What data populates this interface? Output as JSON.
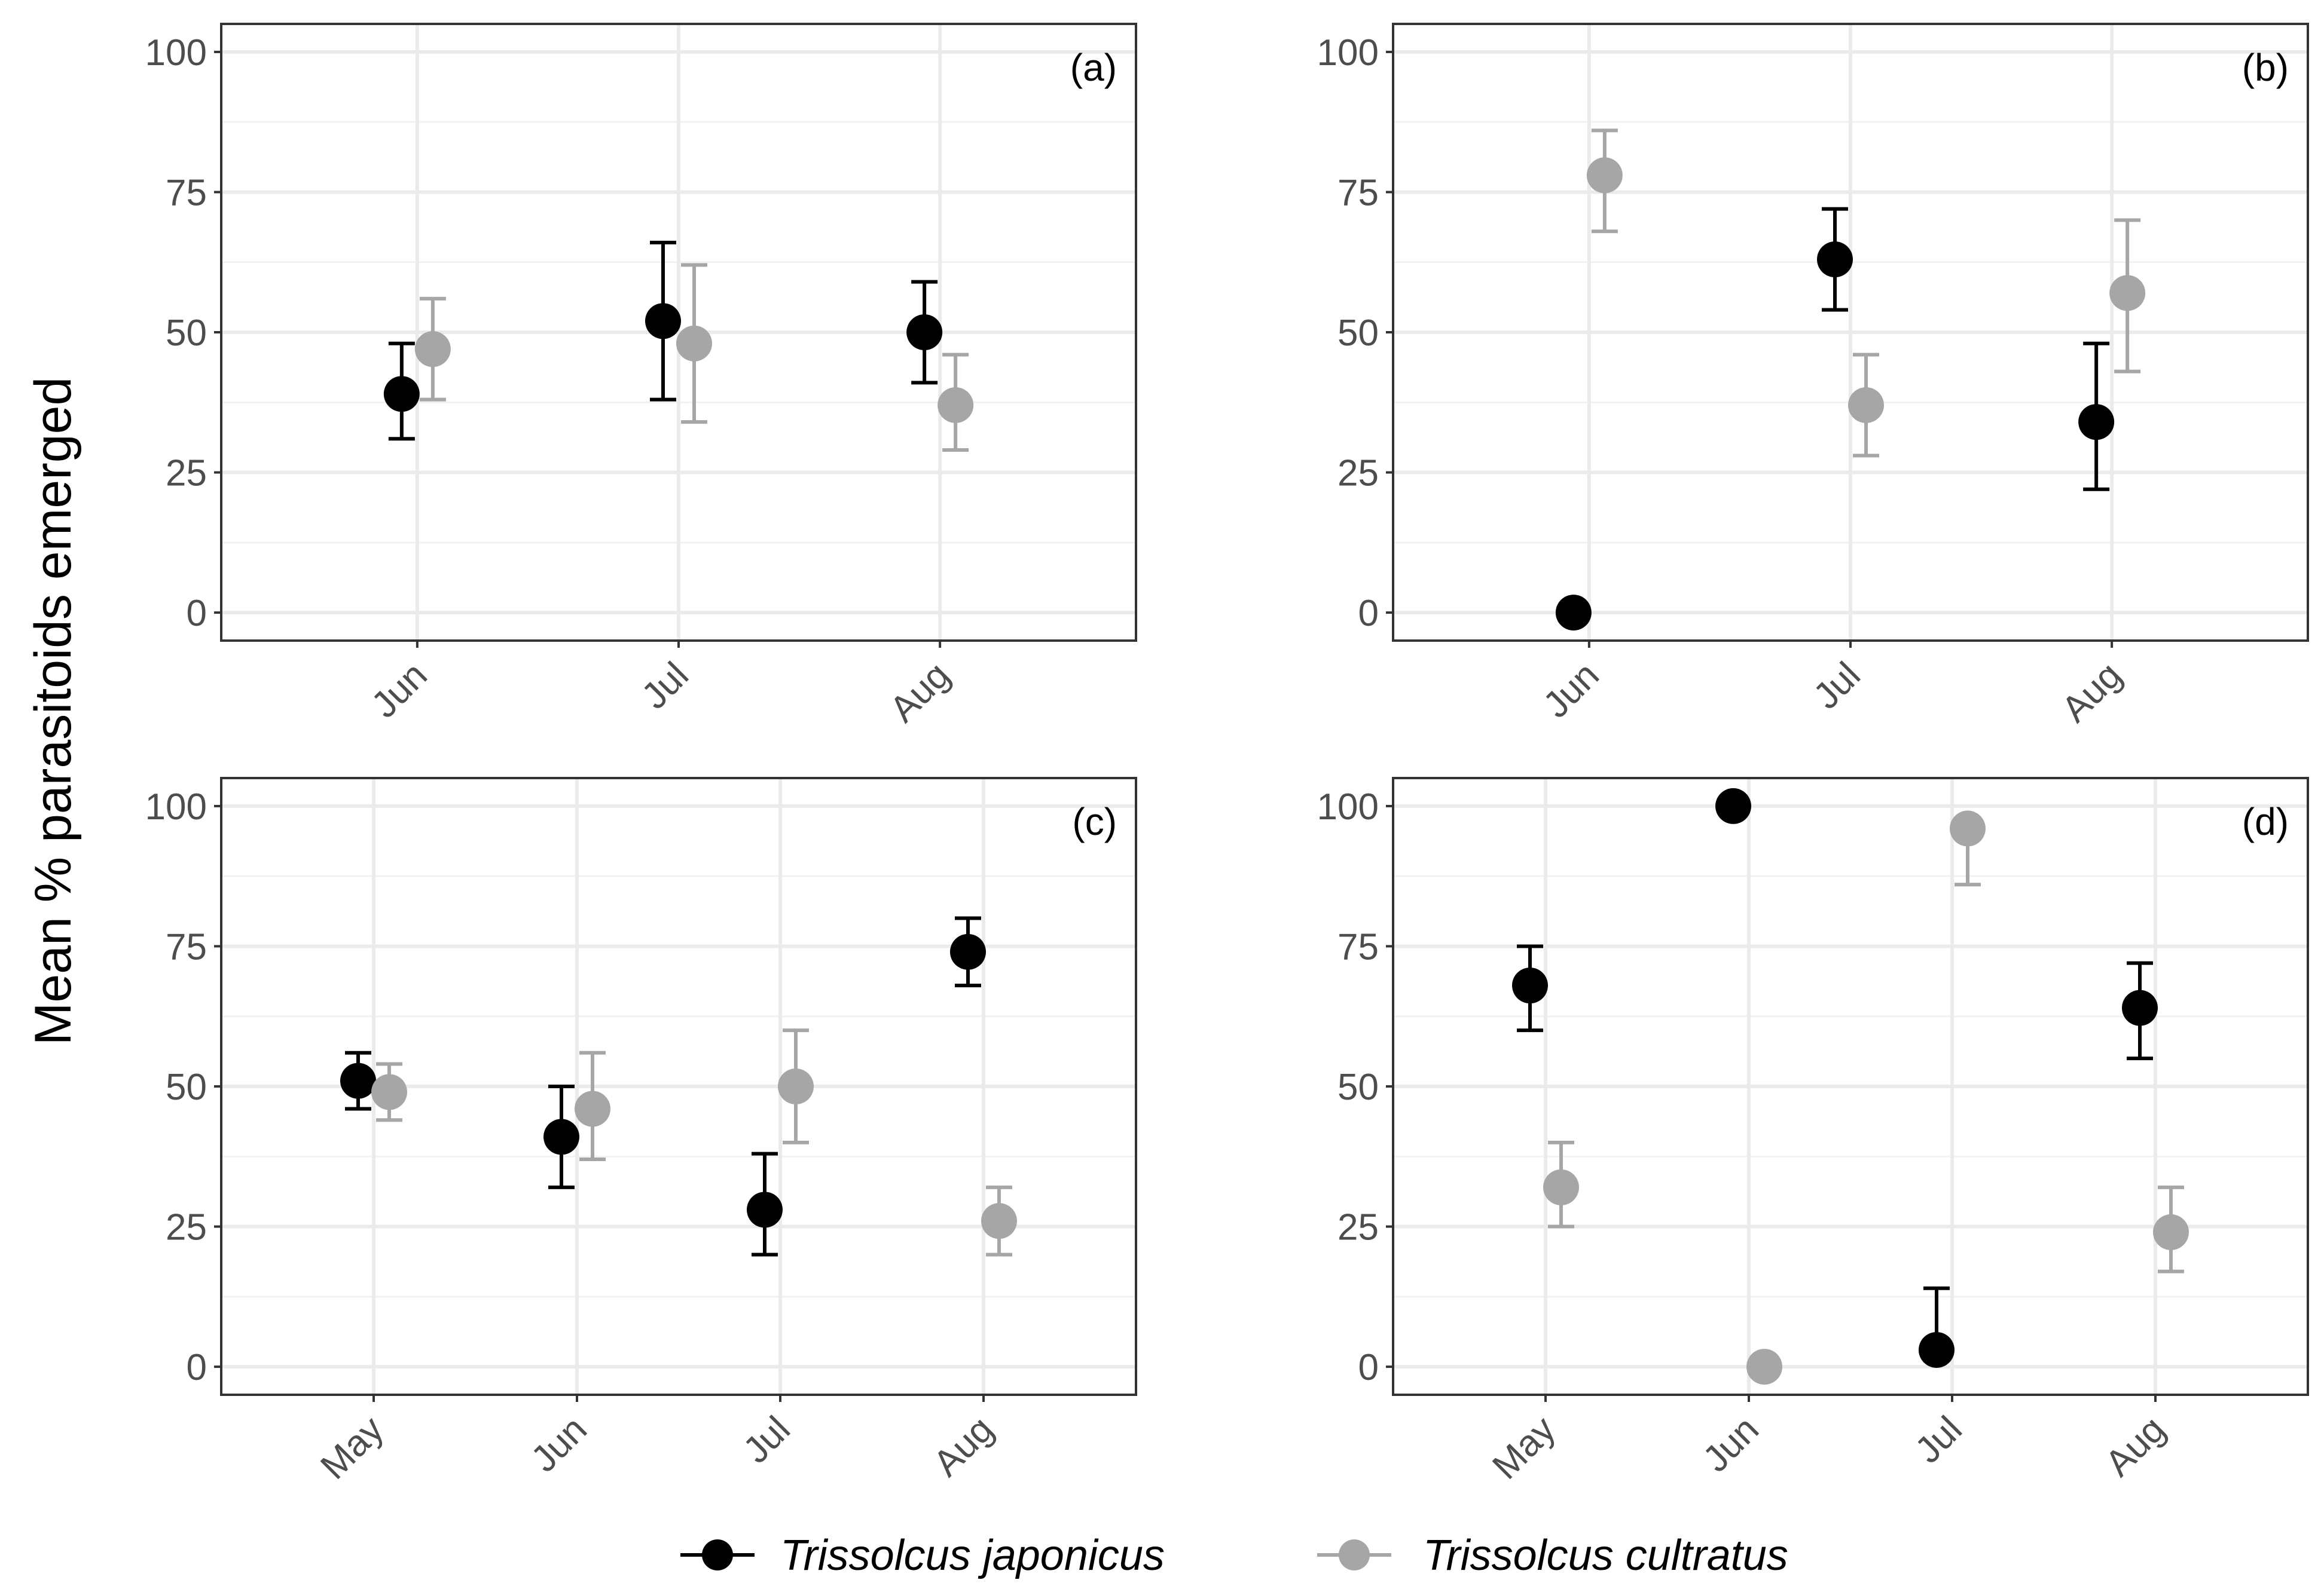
{
  "figure": {
    "ylabel": "Mean % parasitoids emerged",
    "legend": [
      {
        "name": "Trissolcus japonicus",
        "color": "#000000"
      },
      {
        "name": "Trissolcus cultratus",
        "color": "#a6a6a6"
      }
    ]
  },
  "chart_data": [
    {
      "type": "scatter",
      "panel": "(a)",
      "categories": [
        "Jun",
        "Jul",
        "Aug"
      ],
      "ylim": [
        -5,
        105
      ],
      "yticks": [
        0,
        25,
        50,
        75,
        100
      ],
      "grid": true,
      "series": [
        {
          "name": "Trissolcus japonicus",
          "color": "#000000",
          "values": [
            39,
            52,
            50
          ],
          "lower": [
            31,
            38,
            41
          ],
          "upper": [
            48,
            66,
            59
          ]
        },
        {
          "name": "Trissolcus cultratus",
          "color": "#a6a6a6",
          "values": [
            47,
            48,
            37
          ],
          "lower": [
            38,
            34,
            29
          ],
          "upper": [
            56,
            62,
            46
          ]
        }
      ]
    },
    {
      "type": "scatter",
      "panel": "(b)",
      "categories": [
        "Jun",
        "Jul",
        "Aug"
      ],
      "ylim": [
        -5,
        105
      ],
      "yticks": [
        0,
        25,
        50,
        75,
        100
      ],
      "grid": true,
      "series": [
        {
          "name": "Trissolcus japonicus",
          "color": "#000000",
          "values": [
            0,
            63,
            34
          ],
          "lower": [
            null,
            54,
            22
          ],
          "upper": [
            null,
            72,
            48
          ]
        },
        {
          "name": "Trissolcus cultratus",
          "color": "#a6a6a6",
          "values": [
            78,
            37,
            57
          ],
          "lower": [
            68,
            28,
            43
          ],
          "upper": [
            86,
            46,
            70
          ]
        }
      ]
    },
    {
      "type": "scatter",
      "panel": "(c)",
      "categories": [
        "May",
        "Jun",
        "Jul",
        "Aug"
      ],
      "ylim": [
        -5,
        105
      ],
      "yticks": [
        0,
        25,
        50,
        75,
        100
      ],
      "grid": true,
      "series": [
        {
          "name": "Trissolcus japonicus",
          "color": "#000000",
          "values": [
            51,
            41,
            28,
            74
          ],
          "lower": [
            46,
            32,
            20,
            68
          ],
          "upper": [
            56,
            50,
            38,
            80
          ]
        },
        {
          "name": "Trissolcus cultratus",
          "color": "#a6a6a6",
          "values": [
            49,
            46,
            50,
            26
          ],
          "lower": [
            44,
            37,
            40,
            20
          ],
          "upper": [
            54,
            56,
            60,
            32
          ]
        }
      ]
    },
    {
      "type": "scatter",
      "panel": "(d)",
      "categories": [
        "May",
        "Jun",
        "Jul",
        "Aug"
      ],
      "ylim": [
        -5,
        105
      ],
      "yticks": [
        0,
        25,
        50,
        75,
        100
      ],
      "grid": true,
      "series": [
        {
          "name": "Trissolcus japonicus",
          "color": "#000000",
          "values": [
            68,
            100,
            3,
            64
          ],
          "lower": [
            60,
            null,
            null,
            55
          ],
          "upper": [
            75,
            null,
            14,
            72
          ]
        },
        {
          "name": "Trissolcus cultratus",
          "color": "#a6a6a6",
          "values": [
            32,
            0,
            96,
            24
          ],
          "lower": [
            25,
            null,
            86,
            17
          ],
          "upper": [
            40,
            null,
            null,
            32
          ]
        }
      ]
    }
  ]
}
